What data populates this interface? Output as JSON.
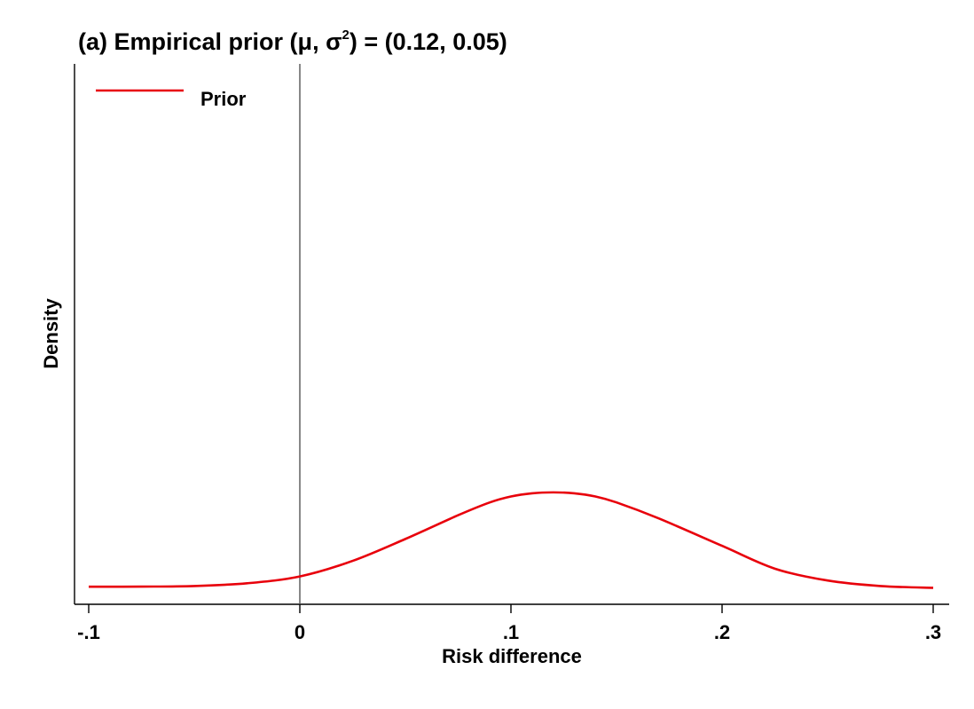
{
  "chart_data": {
    "type": "line",
    "title_prefix": "(a) Empirical prior (μ, σ",
    "title_sup": "2",
    "title_suffix": ") = (0.12, 0.05)",
    "xlabel": "Risk difference",
    "ylabel": "Density",
    "xlim": [
      -0.1,
      0.3
    ],
    "x_ticks": [
      -0.1,
      0,
      0.1,
      0.2,
      0.3
    ],
    "x_tick_labels": [
      "-.1",
      "0",
      ".1",
      ".2",
      ".3"
    ],
    "reference_line_x": 0,
    "legend": {
      "position": "top-left",
      "entries": [
        "Prior"
      ]
    },
    "series": [
      {
        "name": "Prior",
        "color": "#e8000b",
        "x": [
          -0.1,
          -0.075,
          -0.05,
          -0.025,
          0,
          0.025,
          0.05,
          0.075,
          0.09,
          0.1,
          0.11,
          0.12,
          0.13,
          0.14,
          0.15,
          0.17,
          0.2,
          0.225,
          0.25,
          0.275,
          0.3
        ],
        "y": [
          0.055,
          0.057,
          0.07,
          0.13,
          0.28,
          0.62,
          1.1,
          1.62,
          1.9,
          2.03,
          2.1,
          2.12,
          2.1,
          2.03,
          1.9,
          1.55,
          0.95,
          0.45,
          0.19,
          0.07,
          0.03
        ]
      }
    ],
    "ylim": [
      0,
      11.5
    ],
    "grid": false
  }
}
